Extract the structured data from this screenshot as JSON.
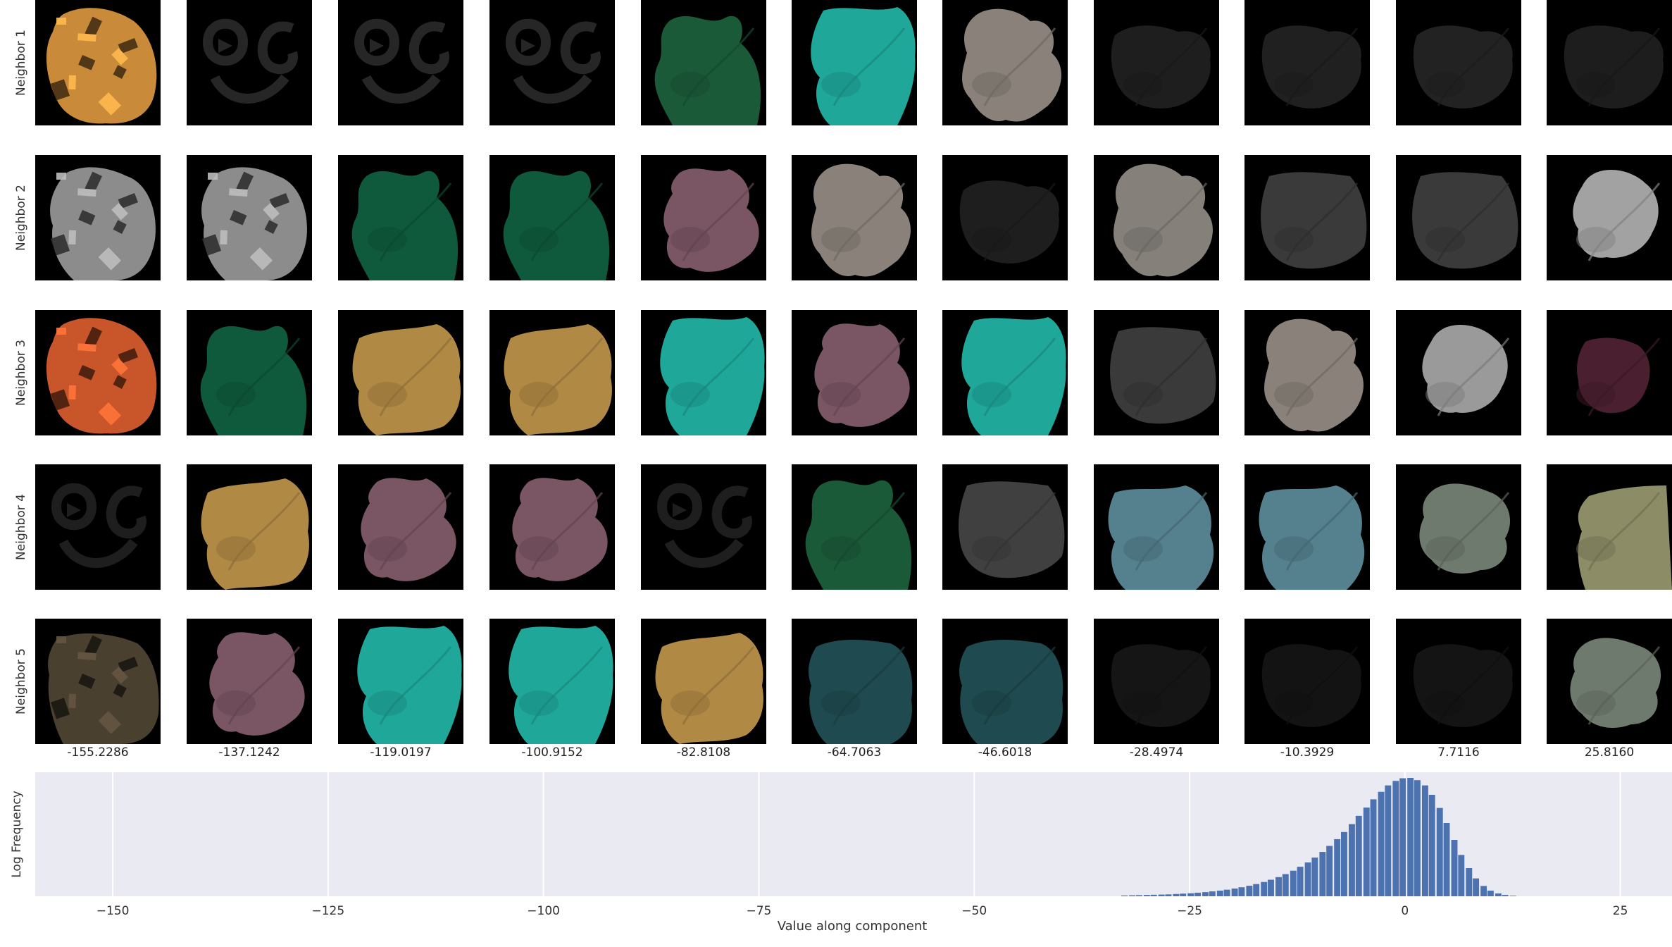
{
  "figure": {
    "row_labels": [
      "Neighbor 1",
      "Neighbor 2",
      "Neighbor 3",
      "Neighbor 4",
      "Neighbor 5"
    ],
    "column_values": [
      "-155.2286",
      "-137.1242",
      "-119.0197",
      "-100.9152",
      "-82.8108",
      "-64.7063",
      "-46.6018",
      "-28.4974",
      "-10.3929",
      "7.7116",
      "25.8160"
    ],
    "thumbnails": [
      [
        {
          "kind": "orange-texture",
          "color": "#c98a3a"
        },
        {
          "kind": "faint-face",
          "color": "#262626"
        },
        {
          "kind": "faint-face",
          "color": "#262626"
        },
        {
          "kind": "faint-face",
          "color": "#262626"
        },
        {
          "kind": "blob-a",
          "color": "#1a5a38"
        },
        {
          "kind": "blob-b",
          "color": "#1fa89a"
        },
        {
          "kind": "blob-c",
          "color": "#8a827a"
        },
        {
          "kind": "blob-d",
          "color": "#1e1e1e"
        },
        {
          "kind": "blob-d",
          "color": "#202020"
        },
        {
          "kind": "blob-d",
          "color": "#222222"
        },
        {
          "kind": "blob-d",
          "color": "#1d1d1d"
        }
      ],
      [
        {
          "kind": "gray-texture",
          "color": "#8c8c8c"
        },
        {
          "kind": "gray-texture",
          "color": "#8c8c8c"
        },
        {
          "kind": "blob-a",
          "color": "#0f5a3c"
        },
        {
          "kind": "blob-a",
          "color": "#0f5a3c"
        },
        {
          "kind": "blob-e",
          "color": "#7a5563"
        },
        {
          "kind": "blob-c",
          "color": "#8a827a"
        },
        {
          "kind": "blob-d",
          "color": "#1e1e1e"
        },
        {
          "kind": "blob-c",
          "color": "#85807a"
        },
        {
          "kind": "blob-f",
          "color": "#3a3a3a"
        },
        {
          "kind": "blob-f",
          "color": "#3a3a3a"
        },
        {
          "kind": "blob-g",
          "color": "#a2a2a2"
        }
      ],
      [
        {
          "kind": "orange-texture",
          "color": "#c8562a"
        },
        {
          "kind": "blob-a",
          "color": "#0f5a3c"
        },
        {
          "kind": "blob-h",
          "color": "#b08a45"
        },
        {
          "kind": "blob-h",
          "color": "#b08a45"
        },
        {
          "kind": "blob-b",
          "color": "#1fa89a"
        },
        {
          "kind": "blob-e",
          "color": "#7a5563"
        },
        {
          "kind": "blob-b",
          "color": "#1fa89a"
        },
        {
          "kind": "blob-f",
          "color": "#3a3a3a"
        },
        {
          "kind": "blob-c",
          "color": "#8a827a"
        },
        {
          "kind": "blob-g",
          "color": "#9a9a9a"
        },
        {
          "kind": "blob-i",
          "color": "#4a1f30"
        }
      ],
      [
        {
          "kind": "faint-face",
          "color": "#1e1e1e"
        },
        {
          "kind": "blob-h",
          "color": "#b08a45"
        },
        {
          "kind": "blob-e",
          "color": "#7a5563"
        },
        {
          "kind": "blob-e",
          "color": "#7a5563"
        },
        {
          "kind": "faint-face",
          "color": "#1e1e1e"
        },
        {
          "kind": "blob-a",
          "color": "#1a5a38"
        },
        {
          "kind": "blob-f",
          "color": "#404040"
        },
        {
          "kind": "blob-j",
          "color": "#55808e"
        },
        {
          "kind": "blob-j",
          "color": "#55808e"
        },
        {
          "kind": "blob-k",
          "color": "#6f7a6e"
        },
        {
          "kind": "blob-l",
          "color": "#8c8c66"
        }
      ],
      [
        {
          "kind": "dark-texture",
          "color": "#4a4030"
        },
        {
          "kind": "blob-e",
          "color": "#7a5563"
        },
        {
          "kind": "blob-b",
          "color": "#1fa89a"
        },
        {
          "kind": "blob-b",
          "color": "#1fa89a"
        },
        {
          "kind": "blob-h",
          "color": "#b08a45"
        },
        {
          "kind": "blob-m",
          "color": "#1f4a4f"
        },
        {
          "kind": "blob-m",
          "color": "#1f4a4f"
        },
        {
          "kind": "blob-d",
          "color": "#151515"
        },
        {
          "kind": "blob-d",
          "color": "#131313"
        },
        {
          "kind": "blob-d",
          "color": "#141414"
        },
        {
          "kind": "blob-k",
          "color": "#6f7a6e"
        }
      ]
    ]
  },
  "chart_data": {
    "type": "bar",
    "xlabel": "Value along component",
    "ylabel": "Log Frequency",
    "xlim": [
      -159,
      31
    ],
    "ylim": [
      0,
      6.6
    ],
    "x_ticks": [
      -150,
      -125,
      -100,
      -75,
      -50,
      -25,
      0,
      25
    ],
    "x_tick_labels": [
      "−150",
      "−125",
      "−100",
      "−75",
      "−50",
      "−25",
      "0",
      "25"
    ],
    "grid": true,
    "bar_color": "#4c72b0",
    "background_color": "#eaeaf2",
    "bin_width": 0.85,
    "bins": [
      {
        "x": -32.5,
        "y": 0.04
      },
      {
        "x": -31.6,
        "y": 0.05
      },
      {
        "x": -30.8,
        "y": 0.06
      },
      {
        "x": -29.9,
        "y": 0.07
      },
      {
        "x": -29.1,
        "y": 0.08
      },
      {
        "x": -28.2,
        "y": 0.09
      },
      {
        "x": -27.4,
        "y": 0.1
      },
      {
        "x": -26.5,
        "y": 0.12
      },
      {
        "x": -25.7,
        "y": 0.14
      },
      {
        "x": -24.8,
        "y": 0.16
      },
      {
        "x": -24.0,
        "y": 0.19
      },
      {
        "x": -23.1,
        "y": 0.22
      },
      {
        "x": -22.3,
        "y": 0.26
      },
      {
        "x": -21.4,
        "y": 0.3
      },
      {
        "x": -20.6,
        "y": 0.35
      },
      {
        "x": -19.7,
        "y": 0.41
      },
      {
        "x": -18.9,
        "y": 0.48
      },
      {
        "x": -18.0,
        "y": 0.56
      },
      {
        "x": -17.2,
        "y": 0.65
      },
      {
        "x": -16.3,
        "y": 0.76
      },
      {
        "x": -15.5,
        "y": 0.88
      },
      {
        "x": -14.6,
        "y": 1.02
      },
      {
        "x": -13.8,
        "y": 1.18
      },
      {
        "x": -12.9,
        "y": 1.36
      },
      {
        "x": -12.1,
        "y": 1.57
      },
      {
        "x": -11.2,
        "y": 1.8
      },
      {
        "x": -10.4,
        "y": 2.06
      },
      {
        "x": -9.5,
        "y": 2.36
      },
      {
        "x": -8.7,
        "y": 2.68
      },
      {
        "x": -7.8,
        "y": 3.04
      },
      {
        "x": -7.0,
        "y": 3.42
      },
      {
        "x": -6.1,
        "y": 3.84
      },
      {
        "x": -5.3,
        "y": 4.28
      },
      {
        "x": -4.4,
        "y": 4.72
      },
      {
        "x": -3.6,
        "y": 5.16
      },
      {
        "x": -2.7,
        "y": 5.56
      },
      {
        "x": -1.9,
        "y": 5.9
      },
      {
        "x": -1.0,
        "y": 6.14
      },
      {
        "x": -0.2,
        "y": 6.28
      },
      {
        "x": 0.7,
        "y": 6.3
      },
      {
        "x": 1.5,
        "y": 6.18
      },
      {
        "x": 2.4,
        "y": 5.9
      },
      {
        "x": 3.2,
        "y": 5.4
      },
      {
        "x": 4.1,
        "y": 4.7
      },
      {
        "x": 4.9,
        "y": 3.9
      },
      {
        "x": 5.8,
        "y": 3.0
      },
      {
        "x": 6.6,
        "y": 2.2
      },
      {
        "x": 7.5,
        "y": 1.5
      },
      {
        "x": 8.3,
        "y": 0.95
      },
      {
        "x": 9.2,
        "y": 0.55
      },
      {
        "x": 10.0,
        "y": 0.3
      },
      {
        "x": 10.9,
        "y": 0.15
      },
      {
        "x": 11.7,
        "y": 0.07
      },
      {
        "x": 12.6,
        "y": 0.03
      }
    ]
  }
}
